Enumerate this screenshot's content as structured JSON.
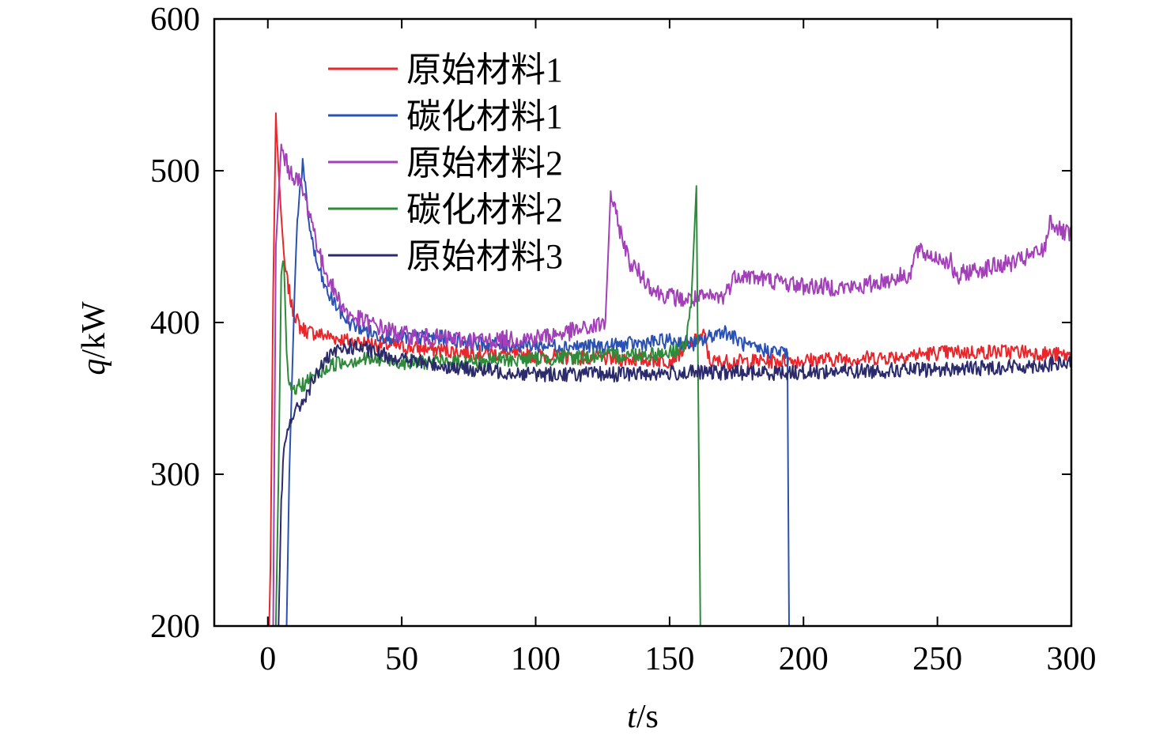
{
  "chart_data": {
    "type": "line",
    "xlabel_var": "t",
    "xlabel_unit": "/s",
    "ylabel_var": "q",
    "ylabel_unit": "/kW",
    "xlim": [
      -20,
      300
    ],
    "ylim": [
      200,
      600
    ],
    "x_ticks": [
      0,
      50,
      100,
      150,
      200,
      250,
      300
    ],
    "y_ticks": [
      200,
      300,
      400,
      500,
      600
    ],
    "x_tick_labels": [
      "0",
      "50",
      "100",
      "150",
      "200",
      "250",
      "300"
    ],
    "y_tick_labels": [
      "200",
      "300",
      "400",
      "500",
      "600"
    ],
    "grid": false,
    "legend_position": "top-left",
    "series": [
      {
        "name": "原始材料1",
        "color": "#e8262b",
        "points": [
          [
            0.5,
            200
          ],
          [
            1,
            240
          ],
          [
            2,
            420
          ],
          [
            3,
            537
          ],
          [
            4,
            500
          ],
          [
            6,
            440
          ],
          [
            9,
            410
          ],
          [
            12,
            397
          ],
          [
            15,
            394
          ],
          [
            20,
            392
          ],
          [
            30,
            388
          ],
          [
            50,
            384
          ],
          [
            70,
            381
          ],
          [
            100,
            378
          ],
          [
            130,
            376
          ],
          [
            150,
            375
          ],
          [
            163,
            392
          ],
          [
            165,
            374
          ],
          [
            200,
            375
          ],
          [
            230,
            377
          ],
          [
            250,
            380
          ],
          [
            280,
            381
          ],
          [
            300,
            378
          ]
        ],
        "noise": 5
      },
      {
        "name": "碳化材料1",
        "color": "#2a52b5",
        "points": [
          [
            7,
            200
          ],
          [
            8,
            300
          ],
          [
            10,
            420
          ],
          [
            11,
            470
          ],
          [
            13,
            505
          ],
          [
            15,
            470
          ],
          [
            18,
            440
          ],
          [
            22,
            420
          ],
          [
            30,
            400
          ],
          [
            40,
            392
          ],
          [
            50,
            390
          ],
          [
            65,
            390
          ],
          [
            80,
            386
          ],
          [
            100,
            385
          ],
          [
            125,
            384
          ],
          [
            150,
            388
          ],
          [
            160,
            386
          ],
          [
            170,
            395
          ],
          [
            180,
            383
          ],
          [
            194,
            380
          ],
          [
            194.6,
            200
          ]
        ],
        "noise": 5
      },
      {
        "name": "原始材料2",
        "color": "#a33fb9",
        "points": [
          [
            2,
            200
          ],
          [
            3,
            450
          ],
          [
            5,
            515
          ],
          [
            8,
            500
          ],
          [
            12,
            492
          ],
          [
            16,
            470
          ],
          [
            20,
            440
          ],
          [
            25,
            420
          ],
          [
            30,
            405
          ],
          [
            40,
            398
          ],
          [
            50,
            392
          ],
          [
            60,
            390
          ],
          [
            80,
            388
          ],
          [
            100,
            390
          ],
          [
            120,
            396
          ],
          [
            126,
            400
          ],
          [
            128,
            485
          ],
          [
            130,
            470
          ],
          [
            135,
            440
          ],
          [
            145,
            420
          ],
          [
            155,
            415
          ],
          [
            170,
            417
          ],
          [
            175,
            432
          ],
          [
            200,
            424
          ],
          [
            220,
            423
          ],
          [
            240,
            432
          ],
          [
            242,
            447
          ],
          [
            255,
            440
          ],
          [
            257,
            427
          ],
          [
            260,
            433
          ],
          [
            280,
            440
          ],
          [
            290,
            448
          ],
          [
            292,
            468
          ],
          [
            296,
            460
          ],
          [
            300,
            457
          ]
        ],
        "noise": 6
      },
      {
        "name": "碳化材料2",
        "color": "#2e8b3a",
        "points": [
          [
            3,
            200
          ],
          [
            4,
            300
          ],
          [
            5,
            430
          ],
          [
            6,
            440
          ],
          [
            7,
            380
          ],
          [
            8,
            355
          ],
          [
            12,
            358
          ],
          [
            18,
            365
          ],
          [
            25,
            373
          ],
          [
            35,
            376
          ],
          [
            50,
            374
          ],
          [
            70,
            374
          ],
          [
            100,
            376
          ],
          [
            125,
            378
          ],
          [
            150,
            380
          ],
          [
            156,
            385
          ],
          [
            158,
            410
          ],
          [
            160,
            490
          ],
          [
            161,
            300
          ],
          [
            161.5,
            200
          ]
        ],
        "noise": 5
      },
      {
        "name": "原始材料3",
        "color": "#2b2a6b",
        "points": [
          [
            4,
            200
          ],
          [
            5,
            280
          ],
          [
            6,
            315
          ],
          [
            8,
            335
          ],
          [
            12,
            345
          ],
          [
            16,
            358
          ],
          [
            20,
            372
          ],
          [
            25,
            380
          ],
          [
            30,
            384
          ],
          [
            35,
            383
          ],
          [
            40,
            380
          ],
          [
            50,
            376
          ],
          [
            70,
            370
          ],
          [
            100,
            366
          ],
          [
            130,
            366
          ],
          [
            160,
            367
          ],
          [
            190,
            367
          ],
          [
            220,
            368
          ],
          [
            250,
            369
          ],
          [
            280,
            371
          ],
          [
            300,
            373
          ]
        ],
        "noise": 5
      }
    ]
  }
}
